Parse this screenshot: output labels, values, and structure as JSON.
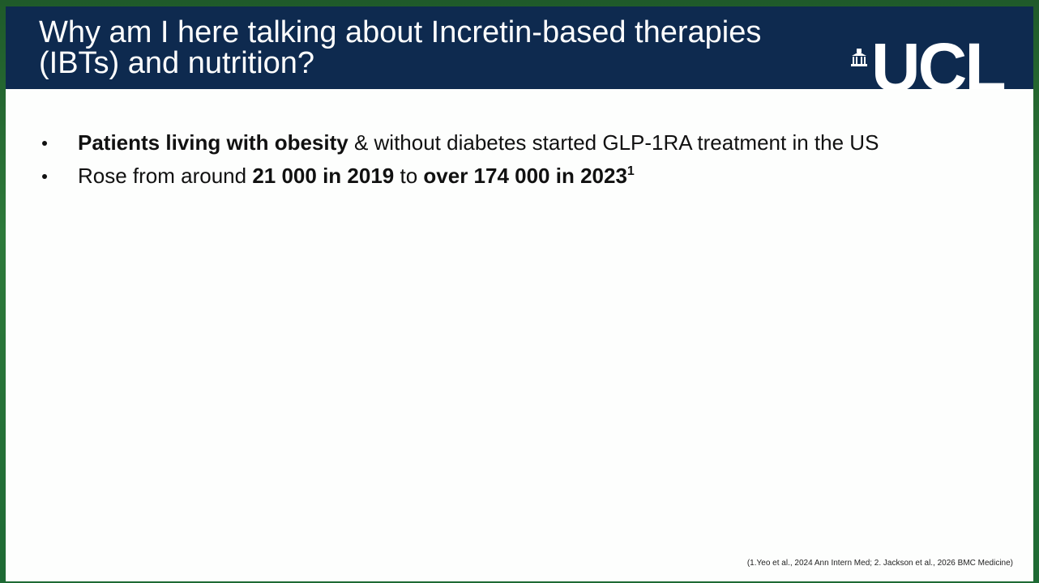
{
  "header": {
    "title_lines": [
      "Why am I here talking about Incretin-based therapies",
      "(IBTs) and nutrition?"
    ],
    "logo": "UCL"
  },
  "bullets": [
    [
      {
        "text": "Patients living with obesity",
        "bold": true
      },
      {
        "text": " & without diabetes started GLP-1RA treatment in the US",
        "bold": false
      }
    ],
    [
      {
        "text": "Rose from around ",
        "bold": false
      },
      {
        "text": "21 000 in 2019",
        "bold": true
      },
      {
        "text": " to ",
        "bold": false
      },
      {
        "text": "over 174 000 in 2023",
        "bold": true
      },
      {
        "text": "1",
        "bold": true,
        "sup": true
      }
    ]
  ],
  "footnote": "(1.Yeo et al., 2024 Ann Intern Med; 2. Jackson et al., 2026 BMC Medicine)"
}
